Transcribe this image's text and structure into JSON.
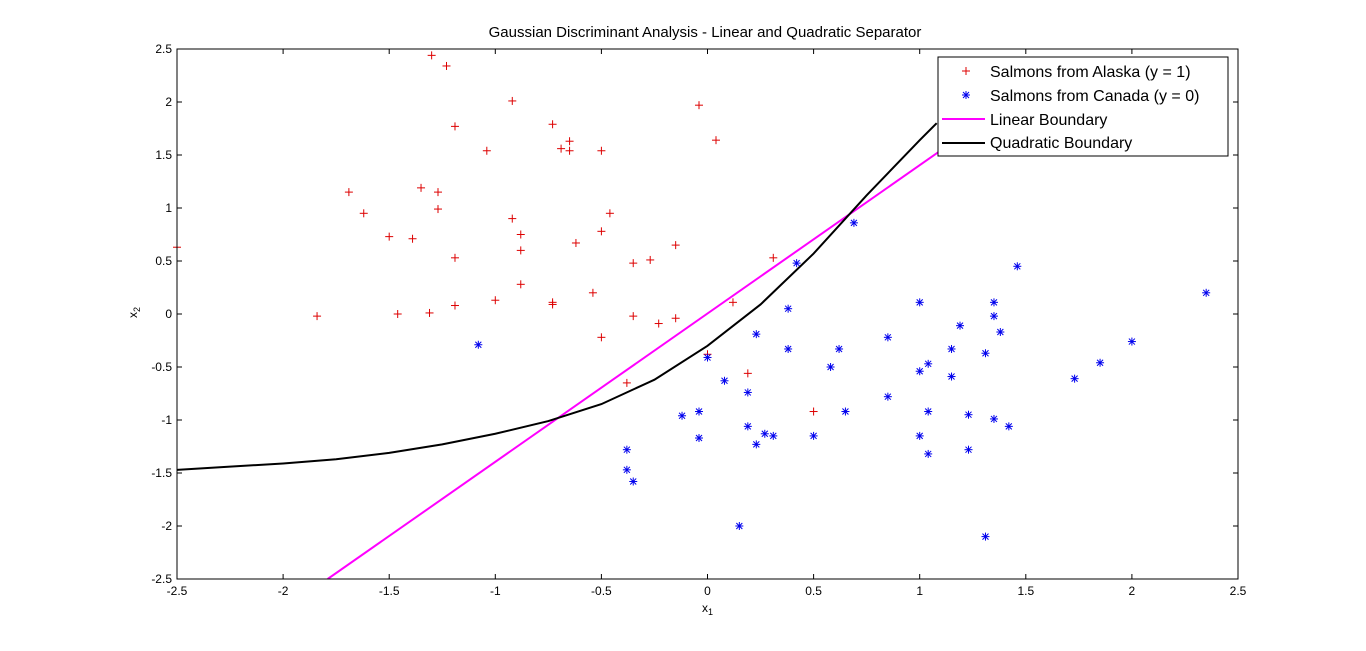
{
  "chart_data": {
    "type": "scatter",
    "title": "Gaussian Discriminant Analysis - Linear and Quadratic Separator",
    "xlabel": "x",
    "xlabel_sub": "1",
    "ylabel": "x",
    "ylabel_sub": "2",
    "xlim": [
      -2.5,
      2.5
    ],
    "ylim": [
      -2.5,
      2.5
    ],
    "xticks": [
      -2.5,
      -2,
      -1.5,
      -1,
      -0.5,
      0,
      0.5,
      1,
      1.5,
      2,
      2.5
    ],
    "yticks": [
      -2.5,
      -2,
      -1.5,
      -1,
      -0.5,
      0,
      0.5,
      1,
      1.5,
      2,
      2.5
    ],
    "grid": false,
    "legend_position": "top-right",
    "series": [
      {
        "name": "Salmons from Alaska (y = 1)",
        "marker": "+",
        "color": "#dd0000",
        "points": [
          [
            -1.3,
            2.44
          ],
          [
            -1.23,
            2.34
          ],
          [
            -0.92,
            2.01
          ],
          [
            -0.04,
            1.97
          ],
          [
            0.04,
            1.64
          ],
          [
            -1.19,
            1.77
          ],
          [
            -0.73,
            1.79
          ],
          [
            -0.65,
            1.63
          ],
          [
            -0.69,
            1.56
          ],
          [
            -0.65,
            1.54
          ],
          [
            -1.04,
            1.54
          ],
          [
            -0.5,
            1.54
          ],
          [
            -1.69,
            1.15
          ],
          [
            -1.35,
            1.19
          ],
          [
            -1.27,
            1.15
          ],
          [
            -1.27,
            0.99
          ],
          [
            -1.62,
            0.95
          ],
          [
            -0.46,
            0.95
          ],
          [
            -0.92,
            0.9
          ],
          [
            -1.5,
            0.73
          ],
          [
            -1.39,
            0.71
          ],
          [
            -0.88,
            0.75
          ],
          [
            -0.5,
            0.78
          ],
          [
            -0.62,
            0.67
          ],
          [
            -0.15,
            0.65
          ],
          [
            -2.5,
            0.63
          ],
          [
            -1.19,
            0.53
          ],
          [
            -0.88,
            0.6
          ],
          [
            -0.35,
            0.48
          ],
          [
            -0.27,
            0.51
          ],
          [
            0.31,
            0.53
          ],
          [
            -0.88,
            0.28
          ],
          [
            -1.0,
            0.13
          ],
          [
            -0.73,
            0.11
          ],
          [
            -0.73,
            0.09
          ],
          [
            -0.54,
            0.2
          ],
          [
            0.12,
            0.11
          ],
          [
            -1.19,
            0.08
          ],
          [
            -1.84,
            -0.02
          ],
          [
            -1.46,
            0.0
          ],
          [
            -1.31,
            0.01
          ],
          [
            -0.35,
            -0.02
          ],
          [
            -0.23,
            -0.09
          ],
          [
            -0.15,
            -0.04
          ],
          [
            -0.5,
            -0.22
          ],
          [
            0.0,
            -0.38
          ],
          [
            -0.38,
            -0.65
          ],
          [
            0.19,
            -0.56
          ],
          [
            0.5,
            -0.92
          ]
        ]
      },
      {
        "name": "Salmons from Canada (y = 0)",
        "marker": "*",
        "color": "#0000ee",
        "points": [
          [
            -1.08,
            -0.29
          ],
          [
            0.69,
            0.86
          ],
          [
            0.42,
            0.48
          ],
          [
            1.46,
            0.45
          ],
          [
            2.35,
            0.2
          ],
          [
            1.0,
            0.11
          ],
          [
            1.35,
            0.11
          ],
          [
            0.38,
            0.05
          ],
          [
            1.35,
            -0.02
          ],
          [
            1.19,
            -0.11
          ],
          [
            1.38,
            -0.17
          ],
          [
            0.23,
            -0.19
          ],
          [
            0.85,
            -0.22
          ],
          [
            1.15,
            -0.33
          ],
          [
            0.38,
            -0.33
          ],
          [
            0.62,
            -0.33
          ],
          [
            2.0,
            -0.26
          ],
          [
            1.31,
            -0.37
          ],
          [
            0.0,
            -0.41
          ],
          [
            1.04,
            -0.47
          ],
          [
            1.85,
            -0.46
          ],
          [
            0.58,
            -0.5
          ],
          [
            1.0,
            -0.54
          ],
          [
            1.15,
            -0.59
          ],
          [
            1.73,
            -0.61
          ],
          [
            0.08,
            -0.63
          ],
          [
            0.19,
            -0.74
          ],
          [
            0.85,
            -0.78
          ],
          [
            -0.12,
            -0.96
          ],
          [
            -0.04,
            -0.92
          ],
          [
            0.65,
            -0.92
          ],
          [
            1.04,
            -0.92
          ],
          [
            1.23,
            -0.95
          ],
          [
            1.35,
            -0.99
          ],
          [
            1.42,
            -1.06
          ],
          [
            0.19,
            -1.06
          ],
          [
            0.27,
            -1.13
          ],
          [
            0.31,
            -1.15
          ],
          [
            0.5,
            -1.15
          ],
          [
            1.0,
            -1.15
          ],
          [
            -0.04,
            -1.17
          ],
          [
            0.23,
            -1.23
          ],
          [
            1.23,
            -1.28
          ],
          [
            1.04,
            -1.32
          ],
          [
            -0.38,
            -1.28
          ],
          [
            -0.38,
            -1.47
          ],
          [
            -0.35,
            -1.58
          ],
          [
            0.15,
            -2.0
          ],
          [
            1.31,
            -2.1
          ]
        ]
      }
    ],
    "boundaries": [
      {
        "name": "Linear Boundary",
        "color": "#ff00ff",
        "points": [
          [
            -1.79,
            -2.5
          ],
          [
            1.09,
            1.53
          ]
        ]
      },
      {
        "name": "Quadratic Boundary",
        "color": "#000000",
        "points": [
          [
            -2.5,
            -1.47
          ],
          [
            -2.25,
            -1.44
          ],
          [
            -2.0,
            -1.41
          ],
          [
            -1.75,
            -1.37
          ],
          [
            -1.5,
            -1.31
          ],
          [
            -1.25,
            -1.23
          ],
          [
            -1.0,
            -1.13
          ],
          [
            -0.75,
            -1.01
          ],
          [
            -0.5,
            -0.85
          ],
          [
            -0.25,
            -0.62
          ],
          [
            0.0,
            -0.3
          ],
          [
            0.25,
            0.09
          ],
          [
            0.5,
            0.57
          ],
          [
            0.75,
            1.12
          ],
          [
            1.0,
            1.64
          ],
          [
            1.08,
            1.8
          ]
        ]
      }
    ]
  }
}
